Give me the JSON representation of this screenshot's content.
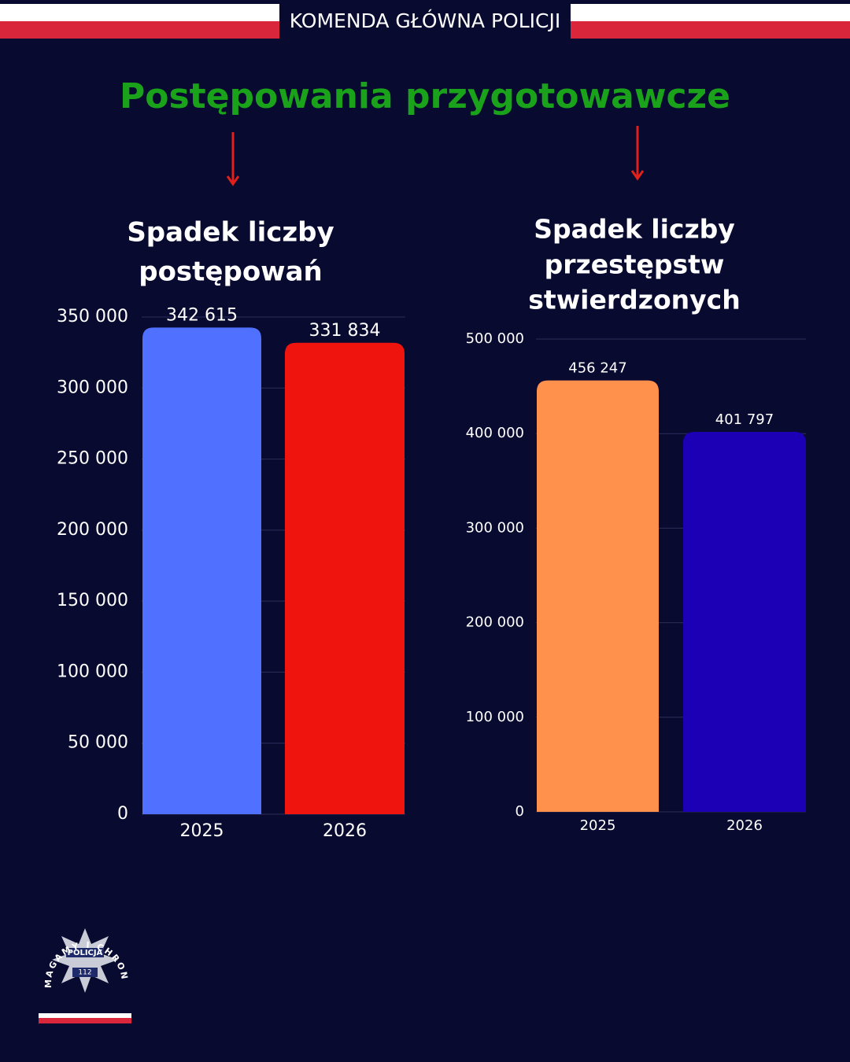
{
  "header": "KOMENDA GŁÓWNA POLICJI",
  "title": "Postępowania przygotowawcze",
  "logo": {
    "motto": "POMAGAMY I CHRONIMY",
    "name": "POLICJA",
    "number": "112"
  },
  "chart_data": [
    {
      "type": "bar",
      "title": [
        "Spadek liczby",
        "postępowań"
      ],
      "categories": [
        "2025",
        "2026"
      ],
      "values": [
        342615,
        331834
      ],
      "value_labels": [
        "342 615",
        "331 834"
      ],
      "colors": [
        "#5070ff",
        "#f0140f"
      ],
      "ylim": [
        0,
        350000
      ],
      "yticks": [
        {
          "value": 0,
          "label": "0"
        },
        {
          "value": 50000,
          "label": "50 000"
        },
        {
          "value": 100000,
          "label": "100 000"
        },
        {
          "value": 150000,
          "label": "150 000"
        },
        {
          "value": 200000,
          "label": "200 000"
        },
        {
          "value": 250000,
          "label": "250 000"
        },
        {
          "value": 300000,
          "label": "300 000"
        },
        {
          "value": 350000,
          "label": "350 000"
        }
      ],
      "grid": true
    },
    {
      "type": "bar",
      "title": [
        "Spadek liczby",
        "przestępstw",
        "stwierdzonych"
      ],
      "categories": [
        "2025",
        "2026"
      ],
      "values": [
        456247,
        401797
      ],
      "value_labels": [
        "456 247",
        "401 797"
      ],
      "colors": [
        "#ff914d",
        "#1c00b5"
      ],
      "ylim": [
        0,
        500000
      ],
      "yticks": [
        {
          "value": 0,
          "label": "0"
        },
        {
          "value": 100000,
          "label": "100 000"
        },
        {
          "value": 200000,
          "label": "200 000"
        },
        {
          "value": 300000,
          "label": "300 000"
        },
        {
          "value": 400000,
          "label": "400 000"
        },
        {
          "value": 500000,
          "label": "500 000"
        }
      ],
      "grid": true
    }
  ]
}
